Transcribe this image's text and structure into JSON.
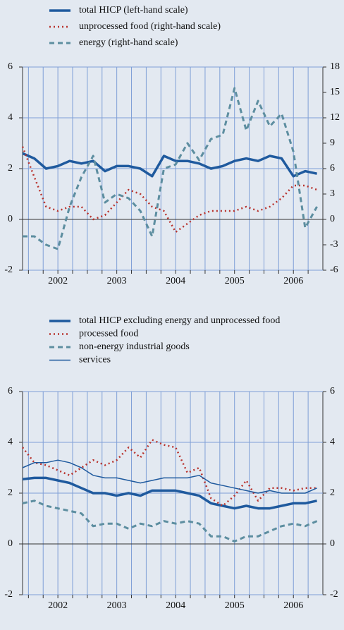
{
  "chart_data": [
    {
      "type": "line",
      "x": [
        2001.9,
        2002.1,
        2002.3,
        2002.5,
        2002.7,
        2002.9,
        2003.1,
        2003.3,
        2003.5,
        2003.7,
        2003.9,
        2004.1,
        2004.3,
        2004.5,
        2004.7,
        2004.9,
        2005.1,
        2005.3,
        2005.5,
        2005.7,
        2005.9,
        2006.1,
        2006.3,
        2006.5,
        2006.7,
        2006.9
      ],
      "xlim": [
        2001.9,
        2007.0
      ],
      "xticks": [
        {
          "value": 2002.5,
          "label": "2002"
        },
        {
          "value": 2003.5,
          "label": "2003"
        },
        {
          "value": 2004.5,
          "label": "2004"
        },
        {
          "value": 2005.5,
          "label": "2005"
        },
        {
          "value": 2006.5,
          "label": "2006"
        }
      ],
      "xgrid": [
        2002.0,
        2002.25,
        2002.5,
        2002.75,
        2003.0,
        2003.25,
        2003.5,
        2003.75,
        2004.0,
        2004.25,
        2004.5,
        2004.75,
        2005.0,
        2005.25,
        2005.5,
        2005.75,
        2006.0,
        2006.25,
        2006.5,
        2006.75
      ],
      "ylim": [
        -2,
        6
      ],
      "yticks": [
        -2,
        0,
        2,
        4,
        6
      ],
      "y2lim": [
        -6,
        18
      ],
      "y2ticks": [
        -6,
        -3,
        0,
        3,
        6,
        9,
        12,
        15,
        18
      ],
      "grid": true,
      "series": [
        {
          "name": "total HICP (left-hand scale)",
          "color": "#1f5a9e",
          "dash": "solid",
          "width": 3.5,
          "values": [
            2.6,
            2.4,
            2.0,
            2.1,
            2.3,
            2.2,
            2.3,
            1.9,
            2.1,
            2.1,
            2.0,
            1.7,
            2.5,
            2.3,
            2.3,
            2.2,
            2.0,
            2.1,
            2.3,
            2.4,
            2.3,
            2.5,
            2.4,
            1.7,
            1.9,
            1.8
          ]
        },
        {
          "name": "unprocessed food (right-hand scale)",
          "color": "#b8322c",
          "dash": "dotted",
          "width": 2.5,
          "axis": "y2",
          "values": [
            8.6,
            5,
            1.5,
            1,
            1.5,
            1.5,
            0,
            0.5,
            2,
            3.5,
            3,
            1.5,
            1,
            -1.5,
            -0.5,
            0.5,
            1,
            1,
            1,
            1.5,
            1,
            1.5,
            2.5,
            4,
            4,
            3.5
          ]
        },
        {
          "name": "energy (right-hand scale)",
          "color": "#5d8ea0",
          "dash": "dashed",
          "width": 3,
          "axis": "y2",
          "values": [
            -2,
            -2,
            -3,
            -3.5,
            1.5,
            5,
            7.5,
            2,
            3,
            2.5,
            1,
            -2,
            6,
            6.5,
            9,
            7,
            9.5,
            10,
            15.5,
            10.5,
            14,
            11,
            12.5,
            8,
            -1,
            1.5
          ]
        }
      ]
    },
    {
      "type": "line",
      "x": [
        2001.9,
        2002.1,
        2002.3,
        2002.5,
        2002.7,
        2002.9,
        2003.1,
        2003.3,
        2003.5,
        2003.7,
        2003.9,
        2004.1,
        2004.3,
        2004.5,
        2004.7,
        2004.9,
        2005.1,
        2005.3,
        2005.5,
        2005.7,
        2005.9,
        2006.1,
        2006.3,
        2006.5,
        2006.7,
        2006.9
      ],
      "xlim": [
        2001.9,
        2007.0
      ],
      "xticks": [
        {
          "value": 2002.5,
          "label": "2002"
        },
        {
          "value": 2003.5,
          "label": "2003"
        },
        {
          "value": 2004.5,
          "label": "2004"
        },
        {
          "value": 2005.5,
          "label": "2005"
        },
        {
          "value": 2006.5,
          "label": "2006"
        }
      ],
      "xgrid": [
        2002.0,
        2002.25,
        2002.5,
        2002.75,
        2003.0,
        2003.25,
        2003.5,
        2003.75,
        2004.0,
        2004.25,
        2004.5,
        2004.75,
        2005.0,
        2005.25,
        2005.5,
        2005.75,
        2006.0,
        2006.25,
        2006.5,
        2006.75
      ],
      "ylim": [
        -2,
        6
      ],
      "yticks": [
        -2,
        0,
        2,
        4,
        6
      ],
      "y2lim": [
        -2,
        6
      ],
      "y2ticks": [
        -2,
        0,
        2,
        4,
        6
      ],
      "grid": true,
      "series": [
        {
          "name": "total HICP excluding energy and unprocessed food",
          "color": "#1f5a9e",
          "dash": "solid",
          "width": 3.5,
          "values": [
            2.55,
            2.6,
            2.6,
            2.5,
            2.4,
            2.2,
            2.0,
            2.0,
            1.9,
            2.0,
            1.9,
            2.1,
            2.1,
            2.1,
            2.0,
            1.9,
            1.6,
            1.5,
            1.4,
            1.5,
            1.4,
            1.4,
            1.5,
            1.6,
            1.6,
            1.7
          ]
        },
        {
          "name": "processed food",
          "color": "#b8322c",
          "dash": "dotted",
          "width": 2.5,
          "values": [
            3.8,
            3.2,
            3.1,
            2.9,
            2.7,
            3.0,
            3.3,
            3.1,
            3.3,
            3.8,
            3.4,
            4.1,
            3.9,
            3.8,
            2.8,
            3.0,
            1.8,
            1.5,
            1.9,
            2.5,
            1.7,
            2.2,
            2.2,
            2.1,
            2.2,
            2.2
          ]
        },
        {
          "name": "non-energy industrial goods",
          "color": "#5d8ea0",
          "dash": "dashed",
          "width": 3,
          "values": [
            1.6,
            1.7,
            1.5,
            1.4,
            1.3,
            1.2,
            0.7,
            0.8,
            0.8,
            0.6,
            0.8,
            0.7,
            0.9,
            0.8,
            0.9,
            0.8,
            0.3,
            0.3,
            0.1,
            0.3,
            0.3,
            0.5,
            0.7,
            0.8,
            0.7,
            0.9
          ]
        },
        {
          "name": "services",
          "color": "#1f5a9e",
          "dash": "solid",
          "width": 1.5,
          "values": [
            3.0,
            3.2,
            3.2,
            3.3,
            3.2,
            3.0,
            2.7,
            2.6,
            2.6,
            2.5,
            2.4,
            2.5,
            2.6,
            2.6,
            2.6,
            2.7,
            2.4,
            2.3,
            2.2,
            2.1,
            2.0,
            2.1,
            2.0,
            2.0,
            2.0,
            2.2
          ]
        }
      ]
    }
  ]
}
